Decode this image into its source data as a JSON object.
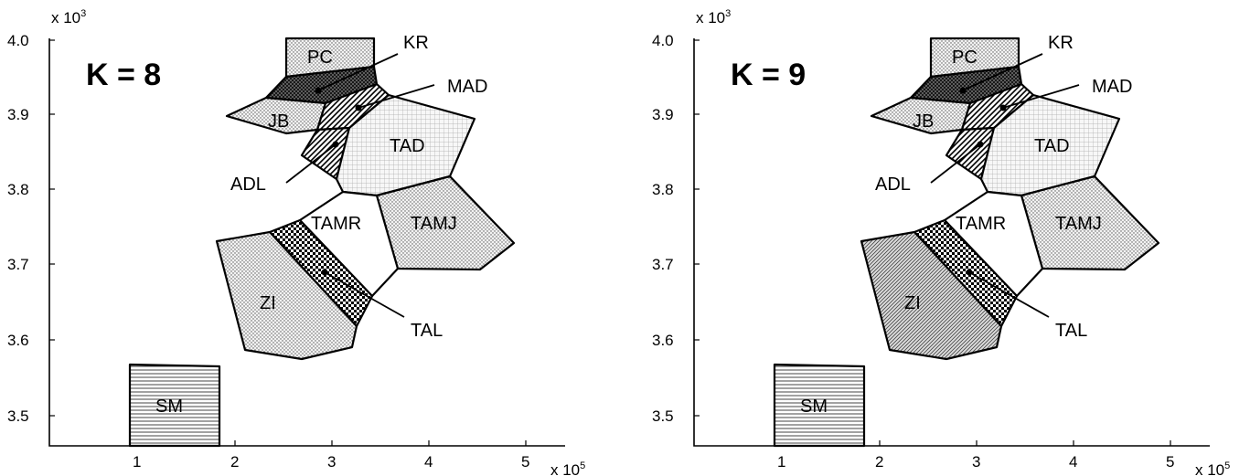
{
  "panels": [
    {
      "title": "K = 8",
      "x_ticks": [
        "1",
        "2",
        "3",
        "4",
        "5"
      ],
      "y_ticks": [
        "4.0",
        "3.9",
        "3.8",
        "3.7",
        "3.6",
        "3.5"
      ],
      "x_multiplier": {
        "base": "x 10",
        "exp": "5"
      },
      "y_multiplier": {
        "base": "x 10",
        "exp": "3"
      },
      "regions": [
        {
          "label": "PC",
          "pattern": "dots"
        },
        {
          "label": "KR",
          "pattern": "crosshatch"
        },
        {
          "label": "MAD",
          "pattern": "diag"
        },
        {
          "label": "JB",
          "pattern": "dots"
        },
        {
          "label": "ADL",
          "pattern": "diag"
        },
        {
          "label": "TAD",
          "pattern": "grid"
        },
        {
          "label": "TAMR",
          "pattern": "none"
        },
        {
          "label": "TAMJ",
          "pattern": "dots"
        },
        {
          "label": "TAL",
          "pattern": "checker"
        },
        {
          "label": "ZI",
          "pattern": "dots"
        },
        {
          "label": "SM",
          "pattern": "hlines"
        }
      ]
    },
    {
      "title": "K = 9",
      "x_ticks": [
        "1",
        "2",
        "3",
        "4",
        "5"
      ],
      "y_ticks": [
        "4.0",
        "3.9",
        "3.8",
        "3.7",
        "3.6",
        "3.5"
      ],
      "x_multiplier": {
        "base": "x 10",
        "exp": "5"
      },
      "y_multiplier": {
        "base": "x 10",
        "exp": "3"
      },
      "regions": [
        {
          "label": "PC",
          "pattern": "dots"
        },
        {
          "label": "KR",
          "pattern": "crosshatch"
        },
        {
          "label": "MAD",
          "pattern": "diag"
        },
        {
          "label": "JB",
          "pattern": "dots"
        },
        {
          "label": "ADL",
          "pattern": "diag"
        },
        {
          "label": "TAD",
          "pattern": "grid"
        },
        {
          "label": "TAMR",
          "pattern": "none"
        },
        {
          "label": "TAMJ",
          "pattern": "dots"
        },
        {
          "label": "TAL",
          "pattern": "checker"
        },
        {
          "label": "ZI",
          "pattern": "diag-light"
        },
        {
          "label": "SM",
          "pattern": "hlines"
        }
      ]
    }
  ]
}
